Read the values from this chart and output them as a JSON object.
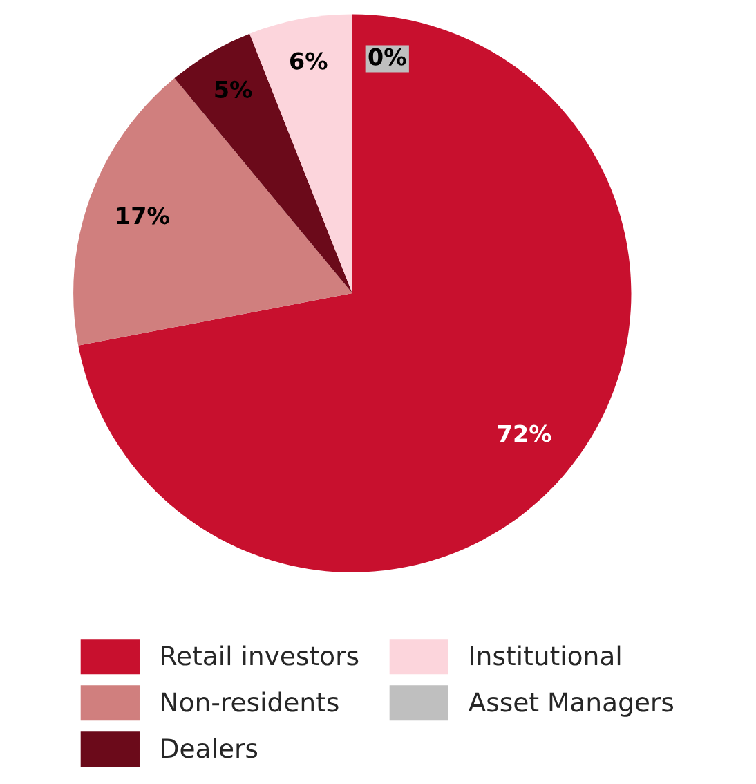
{
  "chart_data": {
    "type": "pie",
    "categories": [
      "Retail investors",
      "Non-residents",
      "Dealers",
      "Institutional",
      "Asset Managers"
    ],
    "values": [
      72,
      17,
      5,
      6,
      0
    ],
    "colors": [
      "#c8102e",
      "#d07f7e",
      "#6b0a1a",
      "#fcd5dc",
      "#bfbfbf"
    ],
    "value_labels": [
      "72%",
      "17%",
      "5%",
      "6%",
      "0%"
    ],
    "legend": "bottom"
  }
}
